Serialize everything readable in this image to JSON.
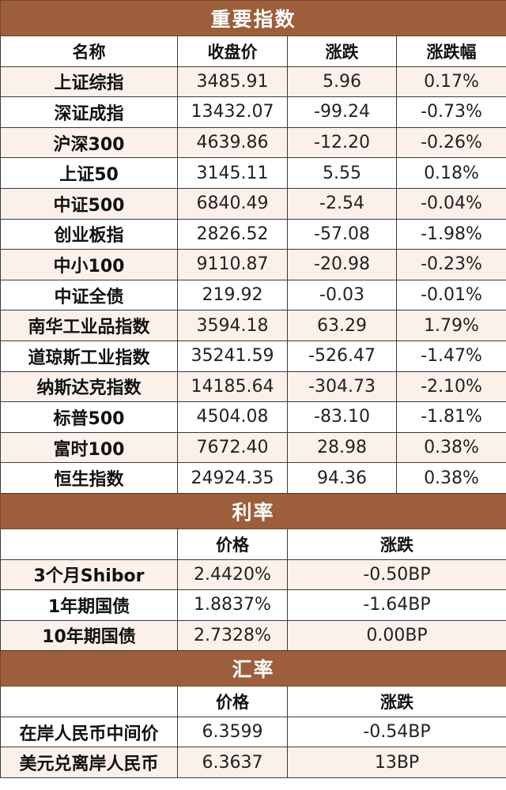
{
  "sections": {
    "indices": {
      "title": "重要指数",
      "headers": [
        "名称",
        "收盘价",
        "涨跌",
        "涨跌幅"
      ],
      "rows": [
        [
          "上证综指",
          "3485.91",
          "5.96",
          "0.17%"
        ],
        [
          "深证成指",
          "13432.07",
          "-99.24",
          "-0.73%"
        ],
        [
          "沪深300",
          "4639.86",
          "-12.20",
          "-0.26%"
        ],
        [
          "上证50",
          "3145.11",
          "5.55",
          "0.18%"
        ],
        [
          "中证500",
          "6840.49",
          "-2.54",
          "-0.04%"
        ],
        [
          "创业板指",
          "2826.52",
          "-57.08",
          "-1.98%"
        ],
        [
          "中小100",
          "9110.87",
          "-20.98",
          "-0.23%"
        ],
        [
          "中证全债",
          "219.92",
          "-0.03",
          "-0.01%"
        ],
        [
          "南华工业品指数",
          "3594.18",
          "63.29",
          "1.79%"
        ],
        [
          "道琼斯工业指数",
          "35241.59",
          "-526.47",
          "-1.47%"
        ],
        [
          "纳斯达克指数",
          "14185.64",
          "-304.73",
          "-2.10%"
        ],
        [
          "标普500",
          "4504.08",
          "-83.10",
          "-1.81%"
        ],
        [
          "富时100",
          "7672.40",
          "28.98",
          "0.38%"
        ],
        [
          "恒生指数",
          "24924.35",
          "94.36",
          "0.38%"
        ]
      ]
    },
    "rates": {
      "title": "利率",
      "headers": [
        "",
        "价格",
        "涨跌"
      ],
      "rows": [
        [
          "3个月Shibor",
          "2.4420%",
          "-0.50BP"
        ],
        [
          "1年期国债",
          "1.8837%",
          "-1.64BP"
        ],
        [
          "10年期国债",
          "2.7328%",
          "0.00BP"
        ]
      ]
    },
    "fx": {
      "title": "汇率",
      "headers": [
        "",
        "价格",
        "涨跌"
      ],
      "rows": [
        [
          "在岸人民币中间价",
          "6.3599",
          "-0.54BP"
        ],
        [
          "美元兑离岸人民币",
          "6.3637",
          "13BP"
        ]
      ]
    }
  },
  "colors": {
    "band": "#9c5e3b",
    "band_text": "#ffffff",
    "row_stripe": "#fbf1ea",
    "border": "#3a3a3a"
  }
}
